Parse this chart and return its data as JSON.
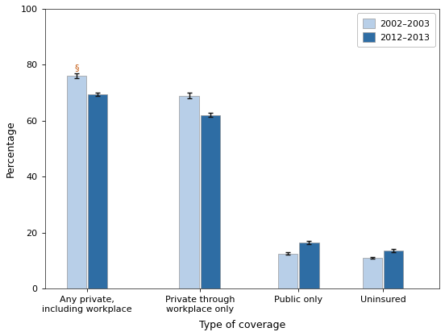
{
  "categories": [
    "Any private,\nincluding workplace",
    "Private through\nworkplace only",
    "Public only",
    "Uninsured"
  ],
  "values_2002": [
    76.0,
    69.0,
    12.5,
    11.0
  ],
  "values_2012": [
    69.5,
    62.0,
    16.5,
    13.5
  ],
  "errors_2002": [
    0.8,
    0.9,
    0.5,
    0.4
  ],
  "errors_2012": [
    0.6,
    0.7,
    0.6,
    0.5
  ],
  "color_2002": "#b8cfe8",
  "color_2012": "#2e6da4",
  "color_error": "#111111",
  "xlabel": "Type of coverage",
  "ylabel": "Percentage",
  "ylim": [
    0,
    100
  ],
  "yticks": [
    0,
    20,
    40,
    60,
    80,
    100
  ],
  "legend_labels": [
    "2002–2003",
    "2012–2013"
  ],
  "section_symbol": "§",
  "symbol_color": "#c55a11",
  "bar_width": 0.28
}
